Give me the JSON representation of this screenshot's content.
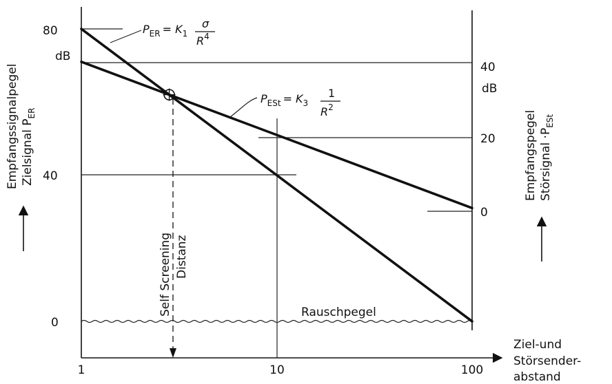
{
  "chart_data": {
    "type": "line",
    "x_scale": "log",
    "xlim": [
      1,
      100
    ],
    "x_ticks": [
      "1",
      "10",
      "100"
    ],
    "xlabel": [
      "Ziel-und",
      "Störsender-",
      "abstand"
    ],
    "y_left": {
      "label_lines": [
        "Empfangssignalpegel",
        "Zielsignal P"
      ],
      "label_sub": "ER",
      "ticks": [
        "80",
        "40",
        "0"
      ],
      "tick_values": [
        80,
        40,
        0
      ],
      "unit": "dB",
      "ylim": [
        0,
        80
      ]
    },
    "y_right": {
      "label_lines": [
        "Empfangspegel",
        "Störsignal ·P"
      ],
      "label_sub": "ESt",
      "ticks": [
        "40",
        "20",
        "0"
      ],
      "tick_values": [
        40,
        20,
        0
      ],
      "unit": "dB",
      "ylim": [
        -20,
        40
      ]
    },
    "series": [
      {
        "formula_p": "P",
        "formula_sub": "ER",
        "formula_rhs": "= K",
        "formula_k_sub": "1",
        "formula_num": "σ",
        "formula_den": "R",
        "formula_den_exp": "4",
        "axis": "left",
        "x": [
          1,
          100
        ],
        "y": [
          80,
          0
        ]
      },
      {
        "formula_p": "P",
        "formula_sub": "ESt",
        "formula_rhs": "= K",
        "formula_k_sub": "3",
        "formula_num": "1",
        "formula_den": "R",
        "formula_den_exp": "2",
        "axis": "left",
        "x": [
          1,
          100
        ],
        "y": [
          71,
          31
        ]
      }
    ],
    "annotations": {
      "intersection_x": 2.9,
      "self_screening_line1": "Self  Screening",
      "self_screening_line2": "Distanz",
      "noise_label": "Rauschpegel",
      "noise_level": 0
    },
    "grid": false
  }
}
